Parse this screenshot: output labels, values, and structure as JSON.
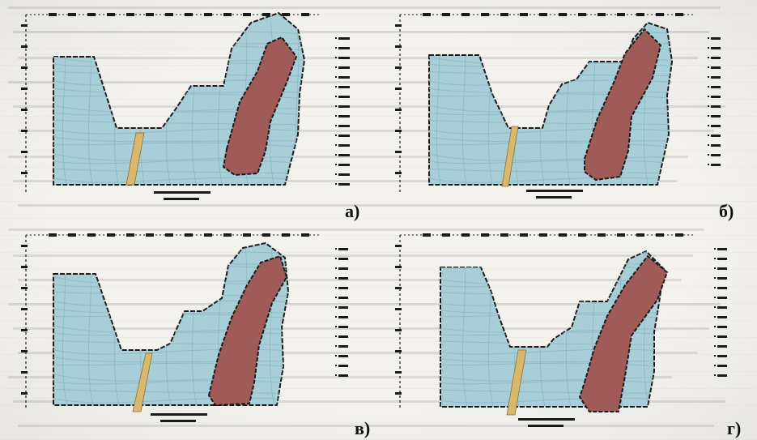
{
  "panels": [
    {
      "id": "a",
      "label": "а)"
    },
    {
      "id": "b",
      "label": "б)"
    },
    {
      "id": "c",
      "label": "в)"
    },
    {
      "id": "d",
      "label": "г)"
    }
  ],
  "colors": {
    "water": "#a8cfd8",
    "water_dark": "#8fbcc8",
    "intrusion": "#a05a58",
    "dyke": "#d8b86a",
    "outline": "#1a1a1a",
    "paper": "#f4f2ee"
  }
}
